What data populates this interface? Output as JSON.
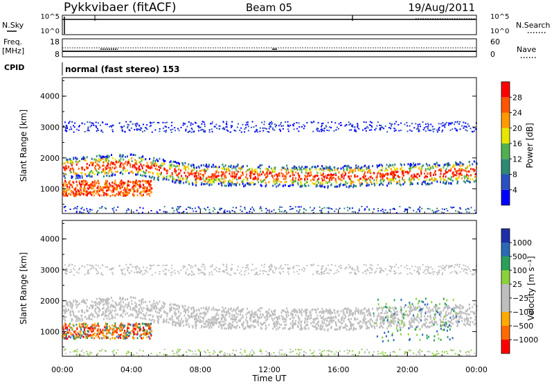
{
  "header": {
    "station": "Pykkvibaer (fitACF)",
    "beam": "Beam 05",
    "date": "19/Aug/2011"
  },
  "panels": {
    "nsky": {
      "left_label": "N.Sky",
      "left_ticks": [
        "10^5",
        "10^0"
      ],
      "right_label": "N.Search",
      "right_ticks": [
        "10^5",
        "10^0"
      ]
    },
    "freq": {
      "left_label_1": "Freq.",
      "left_label_2": "[MHz]",
      "left_ticks": [
        "18",
        "8"
      ],
      "right_label": "Nave",
      "right_ticks": [
        "60",
        "0"
      ]
    },
    "cpid": {
      "label": "CPID",
      "text": "normal (fast stereo) 153"
    }
  },
  "colors": {
    "power": [
      "#0000ff",
      "#2b50c0",
      "#2d8a73",
      "#50b050",
      "#e6e600",
      "#ff9900",
      "#ff5500",
      "#ff0000"
    ],
    "velocity": [
      "#ff0000",
      "#ff6a00",
      "#ffaa00",
      "#bebebe",
      "#bebebe",
      "#8bd23a",
      "#2aa05a",
      "#2a6ab4",
      "#1f2fa8"
    ],
    "ground_scatter": "#bebebe"
  },
  "chart_data": [
    {
      "type": "heatmap",
      "name": "power",
      "ylabel": "Slant Range [km]",
      "ylim": [
        200,
        4600
      ],
      "yticks": [
        "1000",
        "2000",
        "3000",
        "4000"
      ],
      "colorbar_label": "Power [dB]",
      "colorbar_ticks": [
        "4",
        "8",
        "12",
        "16",
        "20",
        "24",
        "28"
      ],
      "colorbar_range": [
        0,
        32
      ]
    },
    {
      "type": "heatmap",
      "name": "velocity",
      "ylabel": "Slant Range [km]",
      "ylim": [
        200,
        4600
      ],
      "yticks": [
        "1000",
        "2000",
        "3000",
        "4000"
      ],
      "xlabel": "Time UT",
      "xticks": [
        "00:00",
        "04:00",
        "08:00",
        "12:00",
        "16:00",
        "20:00",
        "00:00"
      ],
      "xlim_hours": [
        0,
        24
      ],
      "colorbar_label": "Velocity [m s⁻¹]",
      "colorbar_ticks": [
        "1000",
        "500",
        "100",
        "25",
        "−25",
        "−100",
        "−500",
        "−1000"
      ]
    }
  ]
}
